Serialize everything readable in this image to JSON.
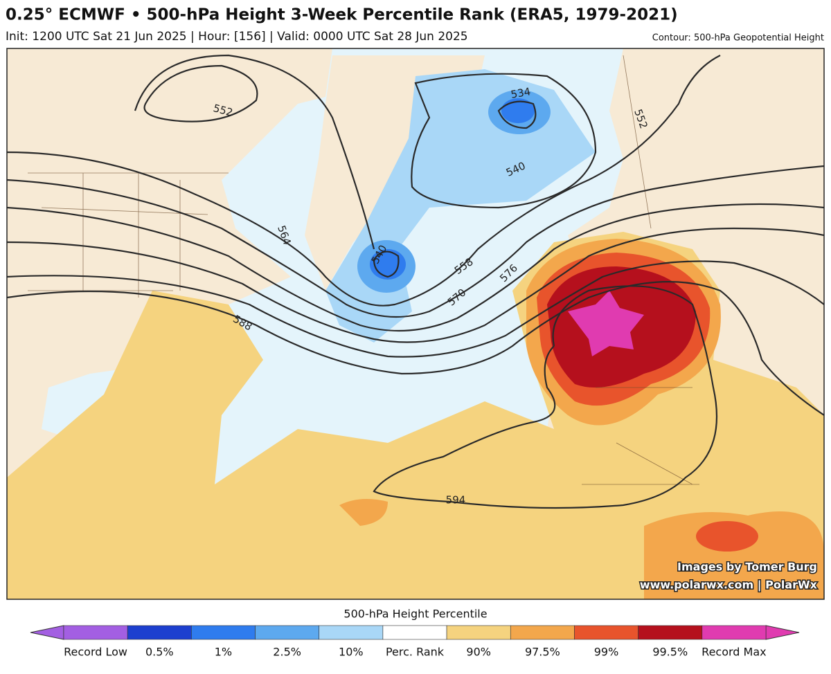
{
  "header": {
    "title": "0.25° ECMWF • 500-hPa Height 3-Week Percentile Rank (ERA5, 1979-2021)",
    "subtitle": "Init: 1200 UTC Sat 21 Jun 2025 | Hour: [156] | Valid: 0000 UTC Sat 28 Jun 2025",
    "contour_note": "Contour: 500-hPa Geopotential Height"
  },
  "map": {
    "contour_labels": [
      534,
      552,
      552,
      540,
      564,
      540,
      558,
      576,
      570,
      588,
      594
    ]
  },
  "credits": [
    "Images by Tomer Burg",
    "www.polarwx.com | PolarWx"
  ],
  "colorbar": {
    "title": "500-hPa Height Percentile",
    "colors": [
      "#a35fe2",
      "#1d3fcf",
      "#2f7cee",
      "#5da9ef",
      "#a9d7f7",
      "#ffffff",
      "#f5d37f",
      "#f3a74c",
      "#e8542c",
      "#b5101d",
      "#e03bb0"
    ],
    "labels": [
      "Record Low",
      "0.5%",
      "1%",
      "2.5%",
      "10%",
      "Perc. Rank",
      "90%",
      "97.5%",
      "99%",
      "99.5%",
      "Record Max"
    ]
  }
}
